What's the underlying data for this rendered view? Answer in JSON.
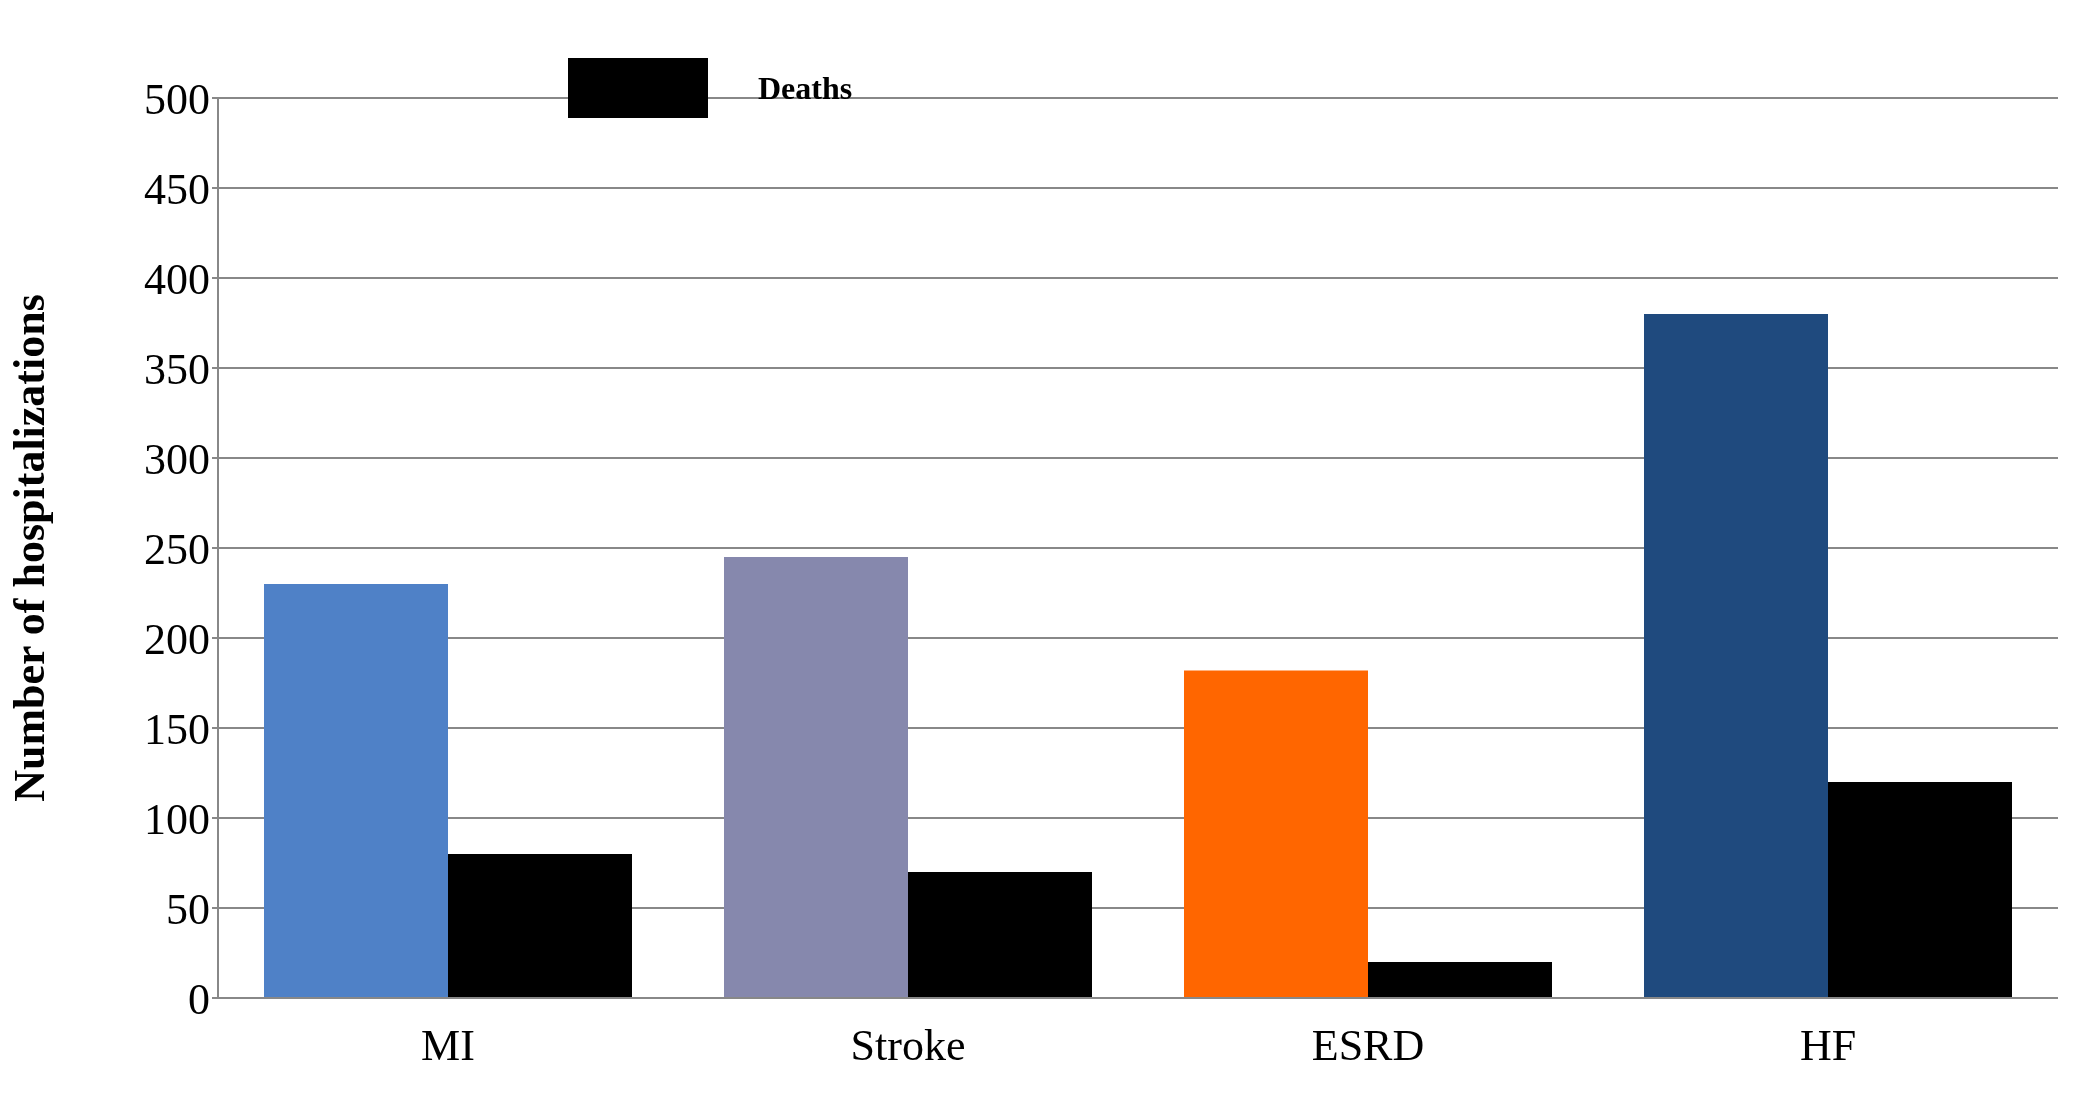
{
  "chart_data": {
    "type": "bar",
    "ylabel": "Number of hospitalizations",
    "categories": [
      "MI",
      "Stroke",
      "ESRD",
      "HF"
    ],
    "series": [
      {
        "colors": [
          "#4f81c7",
          "#8688ad",
          "#ff6600",
          "#1f4a7e"
        ],
        "values": [
          230,
          245,
          182,
          380
        ]
      },
      {
        "name": "Deaths",
        "color": "#000000",
        "values": [
          80,
          70,
          20,
          120
        ]
      }
    ],
    "ylim": [
      0,
      500
    ],
    "yticks": [
      0,
      50,
      100,
      150,
      200,
      250,
      300,
      350,
      400,
      450,
      500
    ],
    "grid": "y",
    "legend": "top"
  }
}
